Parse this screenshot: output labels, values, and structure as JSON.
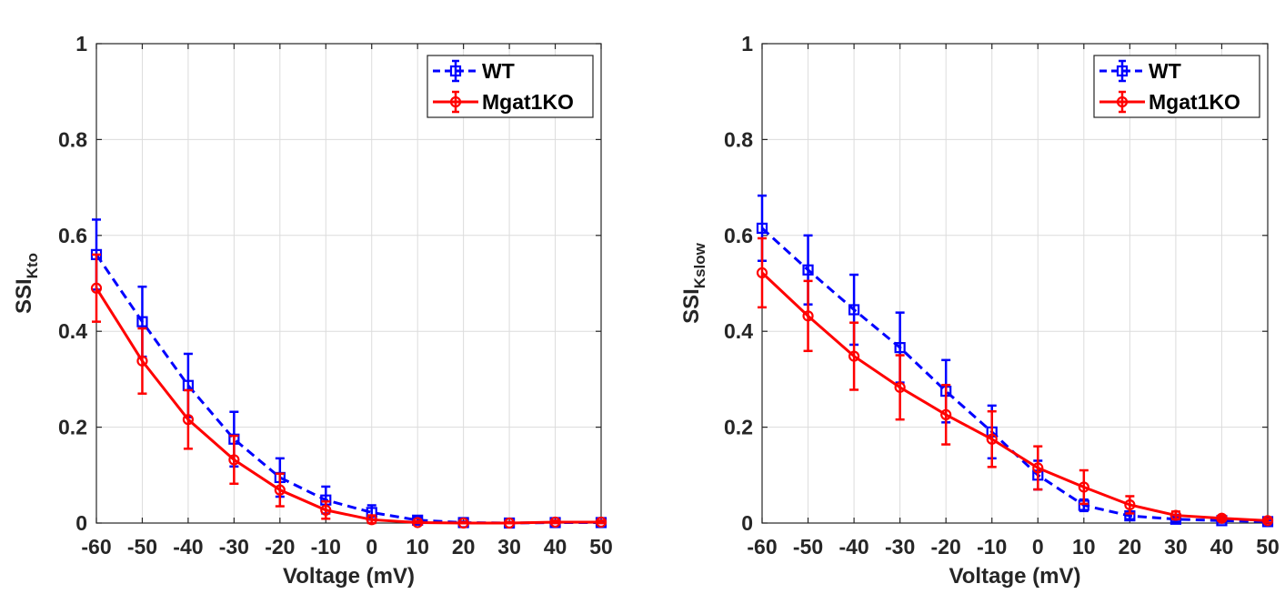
{
  "chart_data": [
    {
      "type": "line",
      "ylabel_main": "SSI",
      "ylabel_sub": "Kto",
      "xlabel": "Voltage (mV)",
      "xlim": [
        -60,
        50
      ],
      "ylim": [
        0,
        1
      ],
      "xticks": [
        -60,
        -50,
        -40,
        -30,
        -20,
        -10,
        0,
        10,
        20,
        30,
        40,
        50
      ],
      "yticks": [
        0,
        0.2,
        0.4,
        0.6,
        0.8,
        1
      ],
      "ytick_labels": [
        "0",
        "0.2",
        "0.4",
        "0.6",
        "0.8",
        "1"
      ],
      "grid": true,
      "legend_position": "top-right",
      "x": [
        -60,
        -50,
        -40,
        -30,
        -20,
        -10,
        0,
        10,
        20,
        30,
        40,
        50
      ],
      "series": [
        {
          "name": "WT",
          "color": "#0000ff",
          "line_style": "dashed",
          "marker": "square",
          "values": [
            0.56,
            0.42,
            0.287,
            0.175,
            0.095,
            0.048,
            0.022,
            0.006,
            0.001,
            0.0,
            0.001,
            0.001
          ],
          "errors": [
            0.073,
            0.073,
            0.066,
            0.057,
            0.04,
            0.028,
            0.015,
            0.006,
            0.002,
            0.002,
            0.003,
            0.003
          ]
        },
        {
          "name": "Mgat1KO",
          "color": "#ff0000",
          "line_style": "solid",
          "marker": "circle",
          "values": [
            0.49,
            0.338,
            0.216,
            0.132,
            0.069,
            0.027,
            0.007,
            0.001,
            0.0,
            0.0,
            0.002,
            0.002
          ],
          "errors": [
            0.07,
            0.068,
            0.061,
            0.05,
            0.034,
            0.018,
            0.009,
            0.003,
            0.002,
            0.002,
            0.003,
            0.003
          ]
        }
      ]
    },
    {
      "type": "line",
      "ylabel_main": "SSI",
      "ylabel_sub": "Kslow",
      "xlabel": "Voltage (mV)",
      "xlim": [
        -60,
        50
      ],
      "ylim": [
        0,
        1
      ],
      "xticks": [
        -60,
        -50,
        -40,
        -30,
        -20,
        -10,
        0,
        10,
        20,
        30,
        40,
        50
      ],
      "yticks": [
        0,
        0.2,
        0.4,
        0.6,
        0.8,
        1
      ],
      "ytick_labels": [
        "0",
        "0.2",
        "0.4",
        "0.6",
        "0.8",
        "1"
      ],
      "grid": true,
      "legend_position": "top-right",
      "x": [
        -60,
        -50,
        -40,
        -30,
        -20,
        -10,
        0,
        10,
        20,
        30,
        40,
        50
      ],
      "series": [
        {
          "name": "WT",
          "color": "#0000ff",
          "line_style": "dashed",
          "marker": "square",
          "values": [
            0.615,
            0.528,
            0.445,
            0.366,
            0.275,
            0.19,
            0.1,
            0.037,
            0.015,
            0.008,
            0.005,
            0.003
          ],
          "errors": [
            0.068,
            0.072,
            0.073,
            0.073,
            0.065,
            0.055,
            0.03,
            0.012,
            0.007,
            0.005,
            0.004,
            0.003
          ]
        },
        {
          "name": "Mgat1KO",
          "color": "#ff0000",
          "line_style": "solid",
          "marker": "circle",
          "values": [
            0.522,
            0.432,
            0.348,
            0.283,
            0.226,
            0.175,
            0.115,
            0.075,
            0.038,
            0.016,
            0.01,
            0.005
          ],
          "errors": [
            0.072,
            0.073,
            0.07,
            0.067,
            0.062,
            0.058,
            0.045,
            0.035,
            0.018,
            0.008,
            0.005,
            0.004
          ]
        }
      ]
    }
  ]
}
